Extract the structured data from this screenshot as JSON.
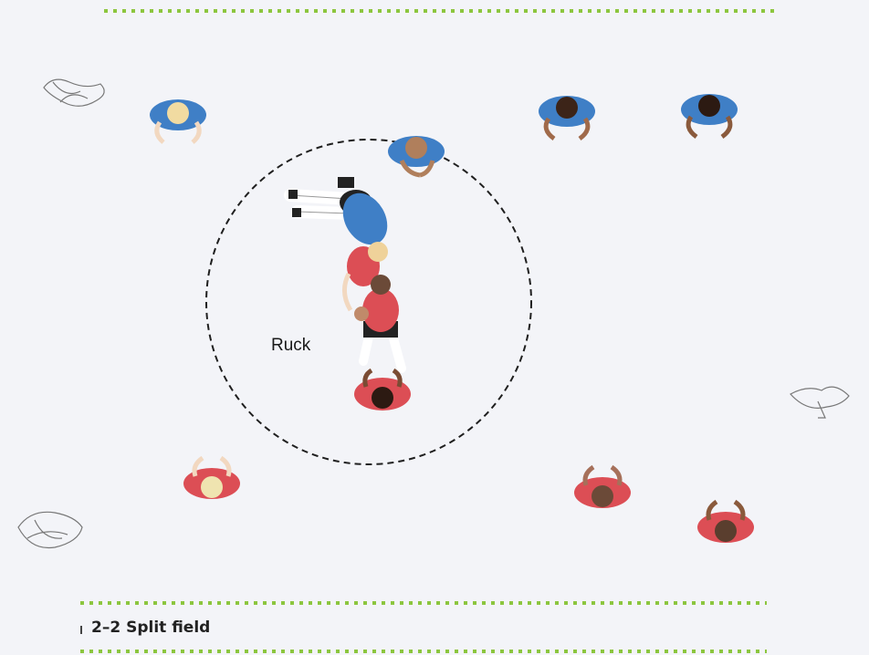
{
  "diagram": {
    "zone_label": "Ruck",
    "caption": "2–2 Split field",
    "colors": {
      "background": "#f3f4f8",
      "field_line": "#8cc63f",
      "blue_team": "#3f7fc6",
      "red_team": "#dc4e55",
      "circle": "#1f1f1f"
    },
    "players": [
      {
        "id": "blue-player-top-left",
        "team": "blue",
        "hair": "#f1dba1",
        "skin": "#f2d8c0"
      },
      {
        "id": "blue-player-top-right-1",
        "team": "blue",
        "hair": "#3c2418",
        "skin": "#a06a4a"
      },
      {
        "id": "blue-player-top-right-2",
        "team": "blue",
        "hair": "#2c1a12",
        "skin": "#8a5a3c"
      },
      {
        "id": "blue-player-at-ruck-edge",
        "team": "blue",
        "hair": "#b07f5c",
        "skin": "#b07f5c"
      },
      {
        "id": "blue-player-in-ruck",
        "team": "blue",
        "hair": "#2a2a2a",
        "skin": "#e8c8a8"
      },
      {
        "id": "red-player-in-ruck-1",
        "team": "red",
        "hair": "#efd29a",
        "skin": "#f2d8c0"
      },
      {
        "id": "red-player-in-ruck-2",
        "team": "red",
        "hair": "#6b4a38",
        "skin": "#c08a6a"
      },
      {
        "id": "red-player-circle-bottom",
        "team": "red",
        "hair": "#2c1a12",
        "skin": "#7a4c34"
      },
      {
        "id": "red-player-bottom-left",
        "team": "red",
        "hair": "#efe4b0",
        "skin": "#f2d8c0"
      },
      {
        "id": "red-player-bottom-right-1",
        "team": "red",
        "hair": "#6b4a38",
        "skin": "#a6705a"
      },
      {
        "id": "red-player-bottom-right-2",
        "team": "red",
        "hair": "#5a3e2e",
        "skin": "#8a5a3c"
      }
    ]
  }
}
